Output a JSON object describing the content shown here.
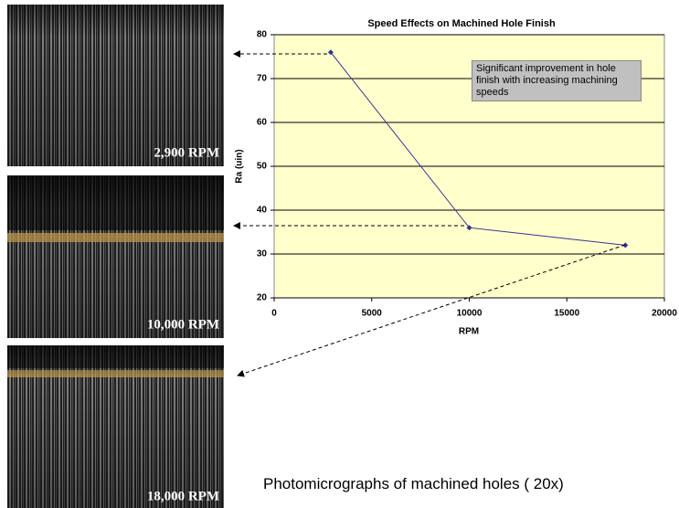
{
  "chart_data": {
    "type": "line",
    "title": "Speed Effects on Machined Hole Finish",
    "x_label": "RPM",
    "y_label": "Ra (uin)",
    "x": [
      2900,
      10000,
      18000
    ],
    "values": [
      76,
      36,
      32
    ],
    "color": "#333399",
    "xlim": [
      0,
      20000
    ],
    "xticks": [
      0,
      5000,
      10000,
      15000,
      20000
    ],
    "ylim": [
      20,
      80
    ],
    "yticks": [
      20,
      30,
      40,
      50,
      60,
      70,
      80
    ],
    "grid": true,
    "annotation": "Significant improvement in hole finish with increasing machining speeds"
  },
  "photos": [
    {
      "label": "2,900 RPM"
    },
    {
      "label": "10,000 RPM"
    },
    {
      "label": "18,000 RPM"
    }
  ],
  "caption": "Photomicrographs of machined holes ( 20x)"
}
